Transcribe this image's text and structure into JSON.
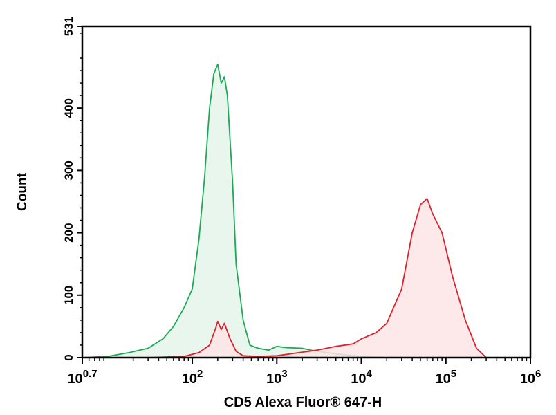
{
  "chart_data": {
    "type": "area",
    "xlabel": "CD5 Alexa Fluor® 647-H",
    "ylabel": "Count",
    "x_scale": "log",
    "xlim": [
      5.0,
      1000000
    ],
    "ylim": [
      0,
      531
    ],
    "y_ticks": [
      {
        "value": 0,
        "label": "0"
      },
      {
        "value": 100,
        "label": "100"
      },
      {
        "value": 200,
        "label": "200"
      },
      {
        "value": 300,
        "label": "300"
      },
      {
        "value": 400,
        "label": "400"
      },
      {
        "value": 531,
        "label": "531"
      }
    ],
    "x_ticks": [
      {
        "value": 5.0,
        "base": "10",
        "exp": "0.7"
      },
      {
        "value": 100,
        "base": "10",
        "exp": "2"
      },
      {
        "value": 1000,
        "base": "10",
        "exp": "3"
      },
      {
        "value": 10000,
        "base": "10",
        "exp": "4"
      },
      {
        "value": 100000,
        "base": "10",
        "exp": "5"
      },
      {
        "value": 1000000,
        "base": "10",
        "exp": "6"
      }
    ],
    "grid": false,
    "legend": "none",
    "series": [
      {
        "color": "#1aaa55",
        "fill": "#e4f5ea",
        "x": [
          5.0,
          10,
          18,
          30,
          45,
          60,
          80,
          100,
          120,
          140,
          160,
          180,
          200,
          220,
          240,
          260,
          300,
          330,
          400,
          480,
          600,
          800,
          1000,
          1300,
          2000,
          2500,
          3500,
          5000,
          10000,
          20000
        ],
        "y": [
          0,
          2,
          8,
          15,
          30,
          50,
          80,
          110,
          190,
          290,
          400,
          455,
          470,
          440,
          450,
          420,
          280,
          150,
          60,
          20,
          15,
          12,
          18,
          16,
          15,
          12,
          9,
          6,
          2,
          0
        ]
      },
      {
        "color": "#e0202a",
        "fill": "#fde4e6",
        "x": [
          5.0,
          30,
          80,
          120,
          160,
          190,
          200,
          220,
          240,
          280,
          330,
          400,
          600,
          1000,
          3000,
          5000,
          8000,
          10000,
          15000,
          20000,
          30000,
          40000,
          50000,
          60000,
          70000,
          90000,
          120000,
          170000,
          230000,
          300000
        ],
        "y": [
          0,
          0,
          2,
          8,
          20,
          48,
          58,
          45,
          55,
          30,
          10,
          3,
          2,
          3,
          12,
          18,
          22,
          30,
          40,
          55,
          110,
          200,
          245,
          255,
          230,
          200,
          130,
          60,
          15,
          0
        ]
      }
    ]
  }
}
